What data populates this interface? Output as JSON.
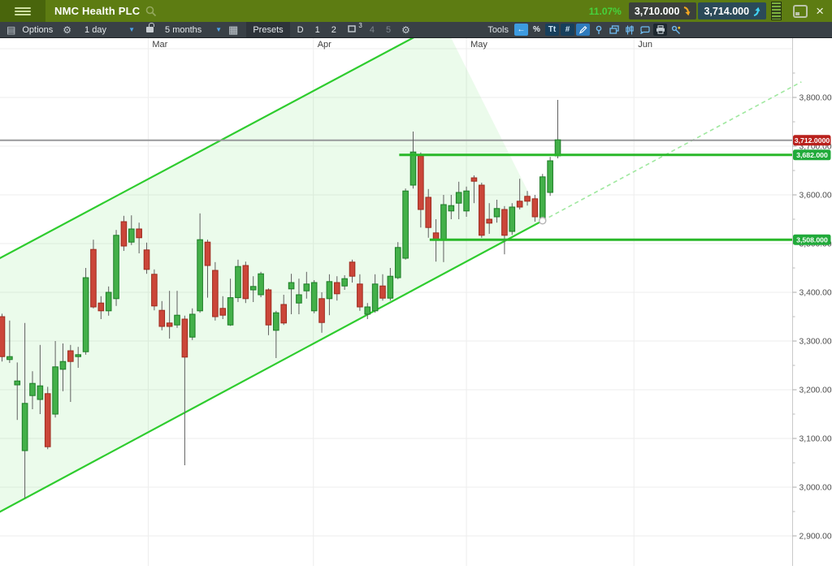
{
  "header": {
    "title": "NMC Health PLC",
    "change_pct": "11.07%",
    "sell_price": "3,710.000",
    "buy_price": "3,714.000"
  },
  "toolbar": {
    "options": "Options",
    "interval": "1 day",
    "range": "5 months",
    "presets": "Presets",
    "preset_d": "D",
    "preset_1": "1",
    "preset_2": "2",
    "preset_3_sup": "3",
    "preset_4": "4",
    "preset_5": "5",
    "tools": "Tools"
  },
  "icons": {
    "list": "▤",
    "gear": "⚙",
    "calendar": "▦",
    "dropdown_arrow": "▼",
    "close": "×",
    "undo_arrow": "←",
    "percent": "%",
    "text": "Tt",
    "grid": "#"
  },
  "chart_data": {
    "type": "candlestick",
    "instrument": "NMC Health PLC",
    "timeframe": "1 day",
    "visible_range": "5 months",
    "x_axis": {
      "months": [
        {
          "label": "Mar",
          "i": 19.2
        },
        {
          "label": "Apr",
          "i": 40.9
        },
        {
          "label": "May",
          "i": 61.0
        },
        {
          "label": "Jun",
          "i": 83.0
        }
      ]
    },
    "y_axis": {
      "min": 2900,
      "max": 3900,
      "step": 100,
      "minor_step": 50,
      "labels": [
        "2,900.000",
        "3,000.000",
        "3,100.000",
        "3,200.000",
        "3,300.000",
        "3,400.000",
        "3,500.000",
        "3,600.000",
        "3,700.000",
        "3,800.000"
      ]
    },
    "candles": [
      [
        3350,
        3356,
        3258,
        3268
      ],
      [
        3262,
        3342,
        3255,
        3268
      ],
      [
        3210,
        3256,
        3138,
        3218
      ],
      [
        3075,
        3337,
        2977,
        3172
      ],
      [
        3188,
        3238,
        3160,
        3213
      ],
      [
        3180,
        3292,
        3150,
        3208
      ],
      [
        3192,
        3206,
        3078,
        3083
      ],
      [
        3150,
        3300,
        3143,
        3247
      ],
      [
        3242,
        3295,
        3197,
        3258
      ],
      [
        3280,
        3292,
        3175,
        3258
      ],
      [
        3268,
        3288,
        3245,
        3272
      ],
      [
        3278,
        3450,
        3272,
        3430
      ],
      [
        3488,
        3508,
        3367,
        3370
      ],
      [
        3378,
        3392,
        3345,
        3362
      ],
      [
        3362,
        3412,
        3352,
        3400
      ],
      [
        3387,
        3528,
        3372,
        3517
      ],
      [
        3545,
        3557,
        3485,
        3495
      ],
      [
        3503,
        3558,
        3497,
        3530
      ],
      [
        3530,
        3543,
        3480,
        3512
      ],
      [
        3487,
        3502,
        3438,
        3447
      ],
      [
        3437,
        3447,
        3363,
        3372
      ],
      [
        3363,
        3382,
        3322,
        3330
      ],
      [
        3337,
        3403,
        3305,
        3330
      ],
      [
        3333,
        3403,
        3327,
        3353
      ],
      [
        3345,
        3352,
        3045,
        3267
      ],
      [
        3308,
        3367,
        3302,
        3355
      ],
      [
        3362,
        3562,
        3358,
        3508
      ],
      [
        3503,
        3508,
        3389,
        3455
      ],
      [
        3445,
        3462,
        3342,
        3350
      ],
      [
        3367,
        3392,
        3345,
        3353
      ],
      [
        3333,
        3428,
        3331,
        3389
      ],
      [
        3389,
        3467,
        3380,
        3453
      ],
      [
        3455,
        3463,
        3378,
        3387
      ],
      [
        3405,
        3433,
        3380,
        3412
      ],
      [
        3395,
        3442,
        3390,
        3438
      ],
      [
        3405,
        3408,
        3312,
        3333
      ],
      [
        3322,
        3362,
        3265,
        3358
      ],
      [
        3375,
        3395,
        3333,
        3337
      ],
      [
        3407,
        3438,
        3355,
        3420
      ],
      [
        3378,
        3428,
        3355,
        3395
      ],
      [
        3403,
        3442,
        3387,
        3417
      ],
      [
        3362,
        3425,
        3357,
        3420
      ],
      [
        3387,
        3400,
        3317,
        3338
      ],
      [
        3387,
        3437,
        3353,
        3422
      ],
      [
        3420,
        3433,
        3383,
        3397
      ],
      [
        3413,
        3435,
        3405,
        3428
      ],
      [
        3462,
        3467,
        3420,
        3433
      ],
      [
        3417,
        3437,
        3362,
        3370
      ],
      [
        3355,
        3378,
        3345,
        3370
      ],
      [
        3362,
        3437,
        3358,
        3417
      ],
      [
        3413,
        3437,
        3383,
        3388
      ],
      [
        3388,
        3450,
        3383,
        3433
      ],
      [
        3430,
        3503,
        3427,
        3492
      ],
      [
        3470,
        3613,
        3467,
        3608
      ],
      [
        3620,
        3730,
        3613,
        3688
      ],
      [
        3680,
        3687,
        3533,
        3570
      ],
      [
        3595,
        3612,
        3512,
        3533
      ],
      [
        3522,
        3550,
        3463,
        3508
      ],
      [
        3508,
        3600,
        3462,
        3580
      ],
      [
        3567,
        3600,
        3550,
        3578
      ],
      [
        3583,
        3627,
        3550,
        3605
      ],
      [
        3567,
        3617,
        3555,
        3608
      ],
      [
        3635,
        3640,
        3583,
        3628
      ],
      [
        3620,
        3625,
        3512,
        3517
      ],
      [
        3550,
        3583,
        3520,
        3542
      ],
      [
        3555,
        3590,
        3543,
        3572
      ],
      [
        3570,
        3577,
        3478,
        3517
      ],
      [
        3525,
        3583,
        3518,
        3575
      ],
      [
        3587,
        3633,
        3570,
        3575
      ],
      [
        3597,
        3608,
        3578,
        3587
      ],
      [
        3592,
        3600,
        3545,
        3555
      ],
      [
        3553,
        3643,
        3545,
        3637
      ],
      [
        3605,
        3678,
        3598,
        3670
      ],
      [
        3680,
        3795,
        3675,
        3713
      ]
    ],
    "colors": {
      "up_fill": "#43b049",
      "up_stroke": "#1c7d26",
      "down_fill": "#cb4639",
      "down_stroke": "#9e2b1f",
      "wick": "#5f5f5f",
      "grid": "#ededed",
      "axis_text": "#4c4c4c",
      "current_line": "#98999b"
    },
    "current_price": {
      "value": 3712,
      "label": "3,712.0000",
      "tag_color": "#b9211c"
    },
    "levels": [
      {
        "value": 3682,
        "label": "3,682.000",
        "from_i": 52.6,
        "color": "#21aa3a",
        "line_color": "#29b829"
      },
      {
        "value": 3508,
        "label": "3,508.000",
        "from_i": 56.6,
        "color": "#21aa3a",
        "line_color": "#29b829"
      }
    ],
    "channel": {
      "lower": {
        "from": {
          "i": 3,
          "p": 2977
        },
        "to": {
          "i": 71,
          "p": 3547
        }
      },
      "upper": {
        "from": {
          "i": -0.3,
          "p": 3470
        },
        "to": {
          "i": 54.3,
          "p": 3925
        }
      },
      "projection_to": {
        "i": 105,
        "p": 3832
      },
      "fill_top_i": 58.9,
      "line_color": "#2ecc2e",
      "projection_color": "#9fe89f",
      "fill_color": "#67e067",
      "fill_opacity": 0.13
    }
  }
}
